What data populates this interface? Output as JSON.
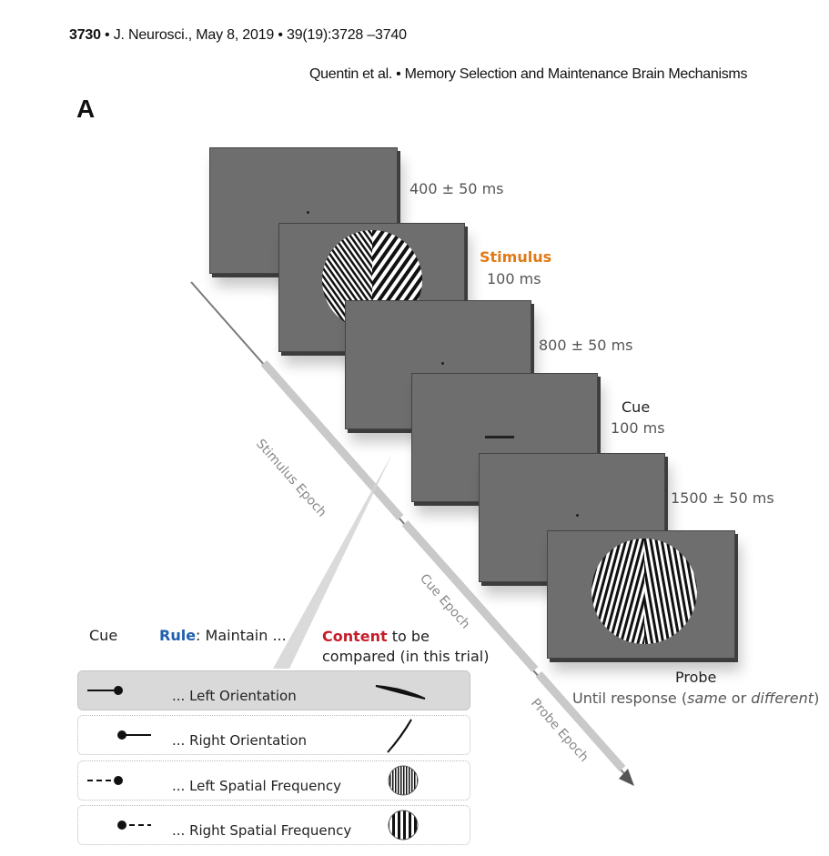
{
  "header": {
    "page_number": "3730",
    "journal": " • J. Neurosci., May 8, 2019 • 39(19):3728 –3740",
    "running_title": "Quentin et al. • Memory Selection and Maintenance Brain Mechanisms"
  },
  "panel_label": "A",
  "timeline": {
    "fixation1_duration": "400 ± 50 ms",
    "stimulus_title": "Stimulus",
    "stimulus_duration": "100 ms",
    "delay1_duration": "800 ± 50 ms",
    "cue_title": "Cue",
    "cue_duration": "100 ms",
    "delay2_duration": "1500 ± 50 ms",
    "probe_title": "Probe",
    "probe_response_prefix": "Until response (",
    "probe_same": "same",
    "probe_or": " or ",
    "probe_different": "different",
    "probe_response_suffix": ")"
  },
  "epochs": {
    "stimulus": "Stimulus Epoch",
    "cue": "Cue Epoch",
    "probe": "Probe Epoch"
  },
  "legend": {
    "cue_header": "Cue",
    "rule_word": "Rule",
    "rule_rest": ": Maintain ...",
    "content_word": "Content",
    "content_rest_1": " to be",
    "content_rest_2": "compared (in this trial)",
    "rows": [
      {
        "text": "... Left Orientation",
        "cue": "solid-line-left-dot",
        "content": "tilted-bar-shallow"
      },
      {
        "text": "... Right Orientation",
        "cue": "dot-solid-line-right",
        "content": "tilted-bar-steep"
      },
      {
        "text": "... Left Spatial Frequency",
        "cue": "dashed-line-left-dot",
        "content": "high-frequency-grating"
      },
      {
        "text": "... Right Spatial Frequency",
        "cue": "dot-dashed-line-right",
        "content": "low-frequency-grating"
      }
    ]
  },
  "colors": {
    "stimulus_label": "#e07a16",
    "rule_label": "#1f5fae",
    "content_label": "#c41e2c",
    "screen": "#6e6e6e"
  }
}
